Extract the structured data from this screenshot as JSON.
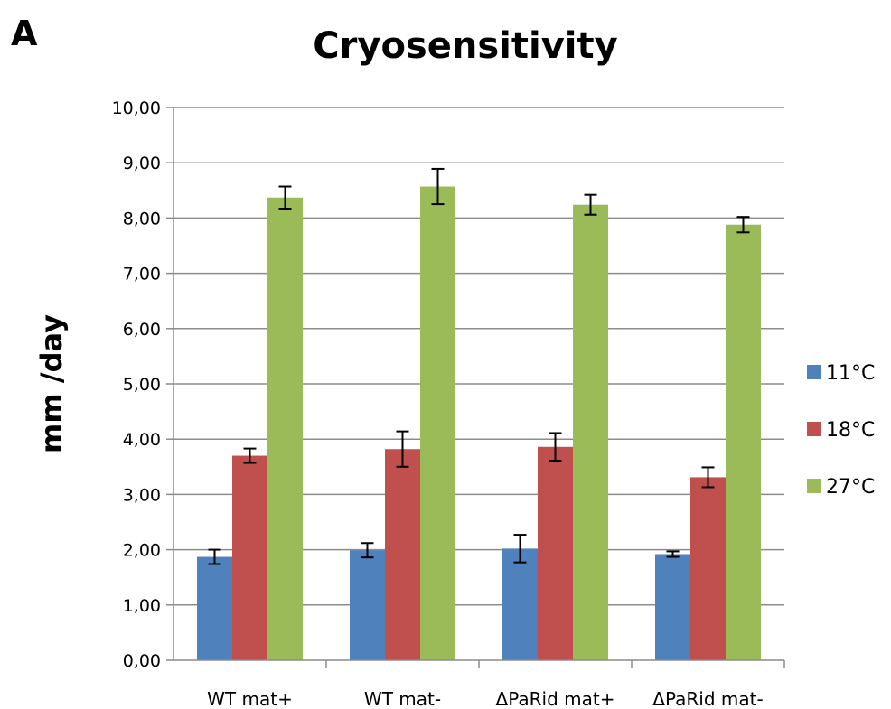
{
  "panel_label": "A",
  "chart_data": {
    "type": "bar",
    "title": "Cryosensitivity",
    "xlabel": "",
    "ylabel": "mm /day",
    "ylim": [
      0,
      10
    ],
    "ytick_step": 1,
    "ytick_labels": [
      "0,00",
      "1,00",
      "2,00",
      "3,00",
      "4,00",
      "5,00",
      "6,00",
      "7,00",
      "8,00",
      "9,00",
      "10,00"
    ],
    "grid": true,
    "legend_position": "right",
    "categories": [
      "WT mat+",
      "WT mat-",
      "ΔPaRid mat+",
      "ΔPaRid mat-"
    ],
    "series": [
      {
        "name": "11°C",
        "color": "#4f81bd",
        "values": [
          1.87,
          1.99,
          2.02,
          1.92
        ],
        "errors": [
          0.13,
          0.13,
          0.25,
          0.05
        ]
      },
      {
        "name": "18°C",
        "color": "#c0504d",
        "values": [
          3.7,
          3.82,
          3.86,
          3.31
        ],
        "errors": [
          0.13,
          0.32,
          0.25,
          0.18
        ]
      },
      {
        "name": "27°C",
        "color": "#9bbb59",
        "values": [
          8.37,
          8.57,
          8.24,
          7.88
        ],
        "errors": [
          0.2,
          0.32,
          0.18,
          0.14
        ]
      }
    ]
  }
}
